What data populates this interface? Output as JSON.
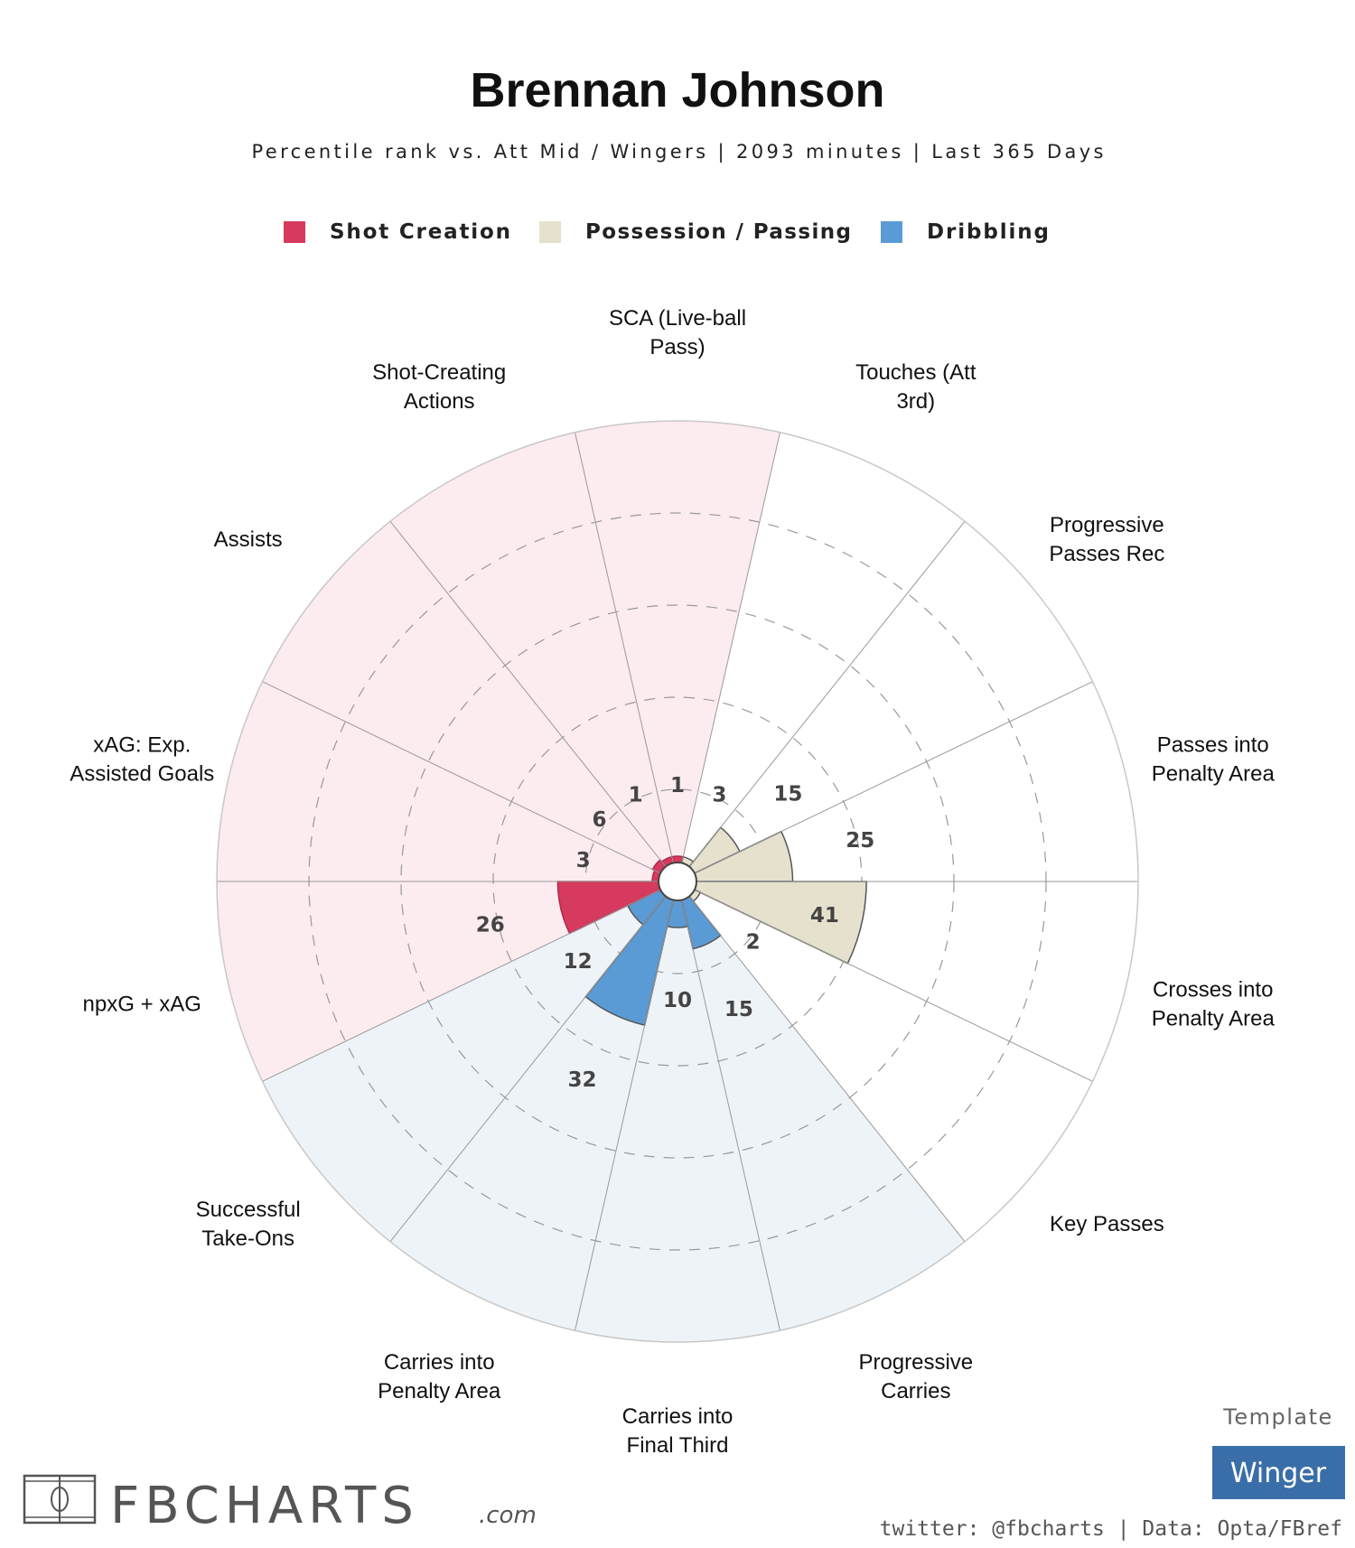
{
  "title": "Brennan Johnson",
  "subtitle": "Percentile rank vs. Att Mid / Wingers | 2093 minutes | Last 365 Days",
  "legend": [
    {
      "label": "Shot Creation",
      "color": "#d63a5e"
    },
    {
      "label": "Possession / Passing",
      "color": "#e6e1cd"
    },
    {
      "label": "Dribbling",
      "color": "#5b9bd5"
    }
  ],
  "chart_data": {
    "type": "pizza",
    "title": "Brennan Johnson",
    "subtitle": "Percentile rank vs. Att Mid / Wingers | 2093 minutes | Last 365 Days",
    "range": [
      0,
      100
    ],
    "gridlines": [
      20,
      40,
      60,
      80
    ],
    "grid": true,
    "legend_placement": "top",
    "group_colors": {
      "Shot Creation": {
        "bar": "#d63a5e",
        "background": "#fcebef"
      },
      "Possession / Passing": {
        "bar": "#e6e1cd",
        "background": "#ffffff"
      },
      "Dribbling": {
        "bar": "#5b9bd5",
        "background": "#eef3f8"
      }
    },
    "slices": [
      {
        "label": [
          "SCA (Live-ball",
          "Pass)"
        ],
        "value": 1,
        "group": "Shot Creation"
      },
      {
        "label": [
          "Touches (Att",
          "3rd)"
        ],
        "value": 3,
        "group": "Possession / Passing"
      },
      {
        "label": [
          "Progressive",
          "Passes Rec"
        ],
        "value": 15,
        "group": "Possession / Passing"
      },
      {
        "label": [
          "Passes into",
          "Penalty Area"
        ],
        "value": 25,
        "group": "Possession / Passing"
      },
      {
        "label": [
          "Crosses into",
          "Penalty Area"
        ],
        "value": 41,
        "group": "Possession / Passing"
      },
      {
        "label": [
          "Key Passes"
        ],
        "value": 2,
        "group": "Possession / Passing"
      },
      {
        "label": [
          "Progressive",
          "Carries"
        ],
        "value": 15,
        "group": "Dribbling"
      },
      {
        "label": [
          "Carries into",
          "Final Third"
        ],
        "value": 10,
        "group": "Dribbling"
      },
      {
        "label": [
          "Carries into",
          "Penalty Area"
        ],
        "value": 32,
        "group": "Dribbling"
      },
      {
        "label": [
          "Successful",
          "Take-Ons"
        ],
        "value": 12,
        "group": "Dribbling"
      },
      {
        "label": [
          "npxG + xAG"
        ],
        "value": 26,
        "group": "Shot Creation"
      },
      {
        "label": [
          "xAG: Exp.",
          "Assisted Goals"
        ],
        "value": 3,
        "group": "Shot Creation"
      },
      {
        "label": [
          "Assists"
        ],
        "value": 6,
        "group": "Shot Creation"
      },
      {
        "label": [
          "Shot-Creating",
          "Actions"
        ],
        "value": 1,
        "group": "Shot Creation"
      }
    ]
  },
  "footer": {
    "logo_text": "FBCHARTS",
    "logo_suffix": ".com",
    "template_label": "Template",
    "template_value": "Winger",
    "template_color": "#3a6ea8",
    "credit": "twitter: @fbcharts | Data: Opta/FBref"
  }
}
